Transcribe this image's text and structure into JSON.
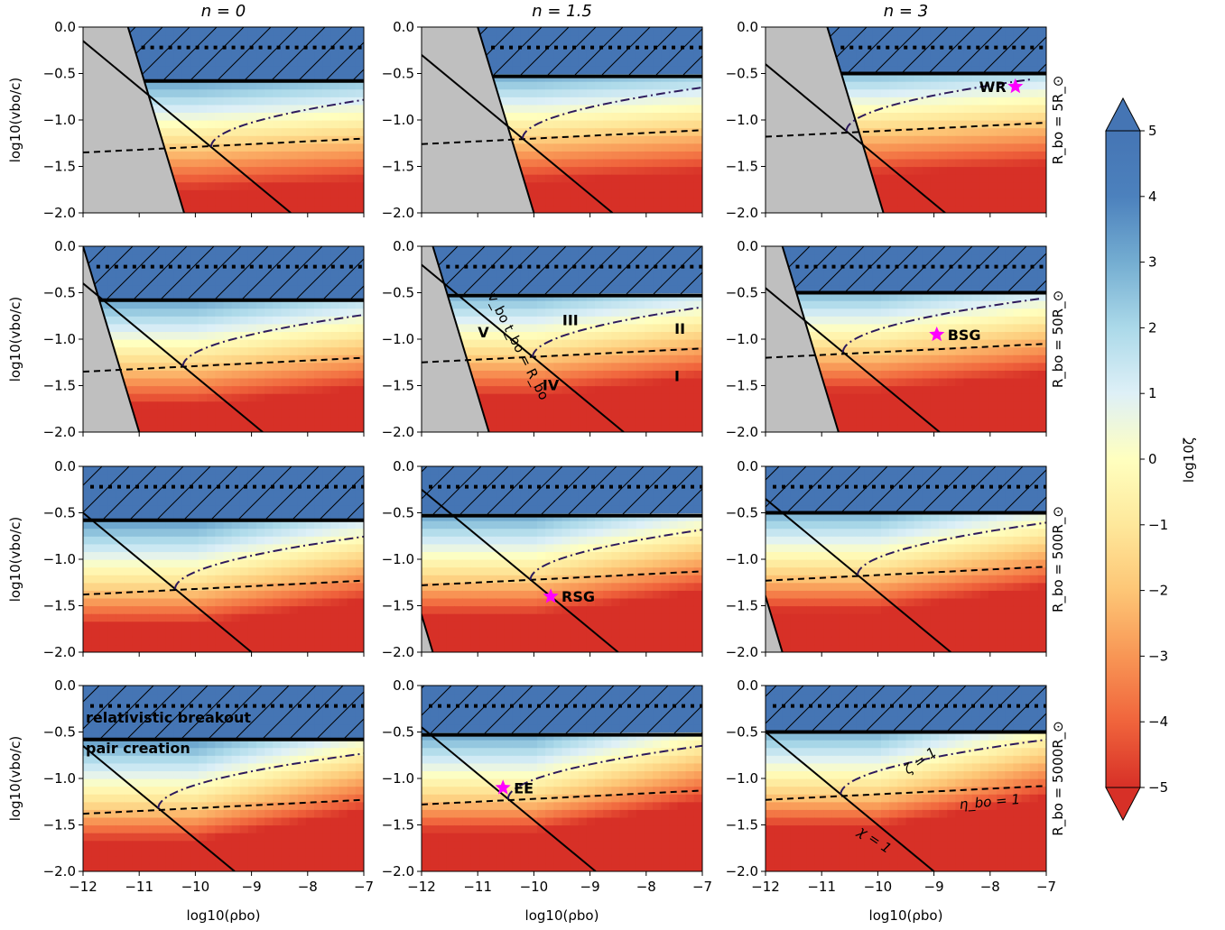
{
  "chart_data": {
    "type": "heatmap",
    "layout": "grid",
    "rows": 4,
    "cols": 3,
    "column_titles": [
      "n = 0",
      "n = 1.5",
      "n = 3"
    ],
    "row_labels": [
      "R_bo = 5R_⊙",
      "R_bo = 50R_⊙",
      "R_bo = 500R_⊙",
      "R_bo = 5000R_⊙"
    ],
    "xlabel": "log10(ρbo)",
    "ylabel": "log10(vbo/c)",
    "xlim": [
      -12,
      -7
    ],
    "ylim": [
      -2.0,
      0.0
    ],
    "xticks": [
      "−12",
      "−11",
      "−10",
      "−9",
      "−8",
      "−7"
    ],
    "yticks": [
      "−2.0",
      "−1.5",
      "−1.0",
      "−0.5",
      "0.0"
    ],
    "colorbar": {
      "label": "log10ζ",
      "range": [
        -5,
        5
      ],
      "ticks": [
        "−5",
        "−4",
        "−3",
        "−2",
        "−1",
        "0",
        "1",
        "2",
        "3",
        "4",
        "5"
      ],
      "extend": "both",
      "colormap": "RdYlBu",
      "colors": {
        "high": "#4575b4",
        "mid": "#ffffbf",
        "low": "#d73027"
      }
    },
    "curves": {
      "relativistic_breakout": {
        "y": -0.22,
        "style": "dotted"
      },
      "pair_creation": {
        "y_by_n": [
          -0.58,
          -0.53,
          -0.5
        ],
        "style": "thick solid"
      },
      "v_t_eq_R": {
        "slope": -2,
        "style": "solid boundary",
        "x_at_y0_by_row": [
          [
            -11.2,
            -11.0,
            -10.9
          ],
          [
            -12.0,
            -11.8,
            -11.7
          ],
          [
            -13.0,
            -12.8,
            -12.7
          ],
          [
            -14.0,
            -13.8,
            -13.7
          ]
        ]
      },
      "chi_eq_1": {
        "slope": -0.5,
        "style": "solid",
        "x_at_y0_by_row": [
          [
            -12.3,
            -12.6,
            -12.8
          ],
          [
            -12.8,
            -12.4,
            -12.9
          ],
          [
            -13.0,
            -12.5,
            -12.7
          ],
          [
            -13.3,
            -12.9,
            -13.0
          ]
        ]
      },
      "eta_eq_1": {
        "slope": 0.03,
        "style": "dashed",
        "y_at_x_minus10_by_row": [
          [
            -1.29,
            -1.2,
            -1.12
          ],
          [
            -1.29,
            -1.19,
            -1.14
          ],
          [
            -1.32,
            -1.22,
            -1.17
          ],
          [
            -1.32,
            -1.22,
            -1.17
          ]
        ]
      },
      "zeta_eq_1": {
        "style": "dash-dot",
        "color": "#2d1a5c"
      }
    },
    "annotations": {
      "region_labels": [
        {
          "text": "V",
          "x": -10.9,
          "y": -0.98
        },
        {
          "text": "III",
          "x": -9.35,
          "y": -0.85
        },
        {
          "text": "II",
          "x": -7.4,
          "y": -0.94
        },
        {
          "text": "IV",
          "x": -9.7,
          "y": -1.55
        },
        {
          "text": "I",
          "x": -7.45,
          "y": -1.45
        }
      ],
      "boundary_label": "v_bo t_bo = R_bo",
      "curve_labels": {
        "zeta": "ζ = 1",
        "eta": "η_bo = 1",
        "chi": "χ = 1"
      },
      "text_labels": [
        "relativistic breakout",
        "pair creation"
      ],
      "stars": [
        {
          "label": "WR",
          "panel": [
            0,
            2
          ],
          "x": -7.55,
          "y": -0.64
        },
        {
          "label": "BSG",
          "panel": [
            1,
            2
          ],
          "x": -8.95,
          "y": -0.95
        },
        {
          "label": "RSG",
          "panel": [
            2,
            1
          ],
          "x": -9.7,
          "y": -1.4
        },
        {
          "label": "EE",
          "panel": [
            3,
            1
          ],
          "x": -10.55,
          "y": -1.1
        }
      ],
      "star_color": "#ff00ff"
    }
  }
}
